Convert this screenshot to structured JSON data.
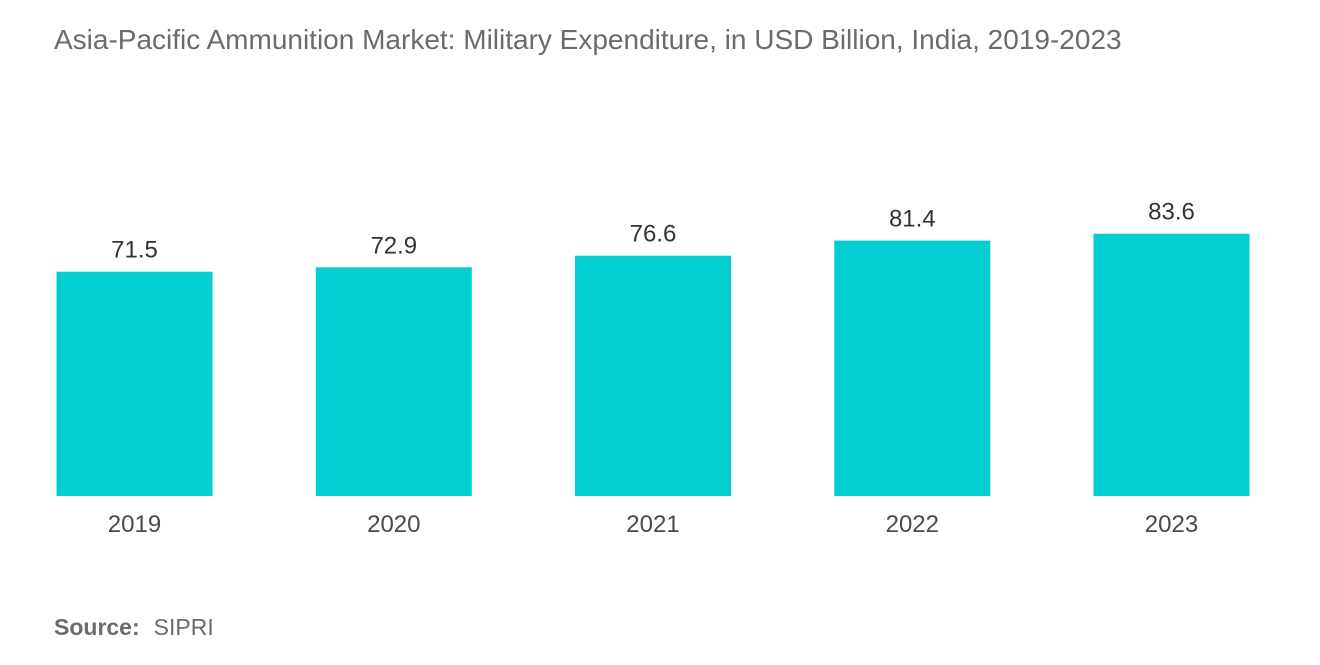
{
  "chart_data": {
    "type": "bar",
    "title": "Asia-Pacific Ammunition Market: Military Expenditure, in USD Billion, India, 2019-2023",
    "categories": [
      "2019",
      "2020",
      "2021",
      "2022",
      "2023"
    ],
    "values": [
      71.5,
      72.9,
      76.6,
      81.4,
      83.6
    ],
    "value_labels": [
      "71.5",
      "72.9",
      "76.6",
      "81.4",
      "83.6"
    ],
    "xlabel": "",
    "ylabel": "",
    "grid": false,
    "legend": "none",
    "bar_color": "#00CED1"
  },
  "source": {
    "label": "Source:",
    "value": "SIPRI"
  }
}
